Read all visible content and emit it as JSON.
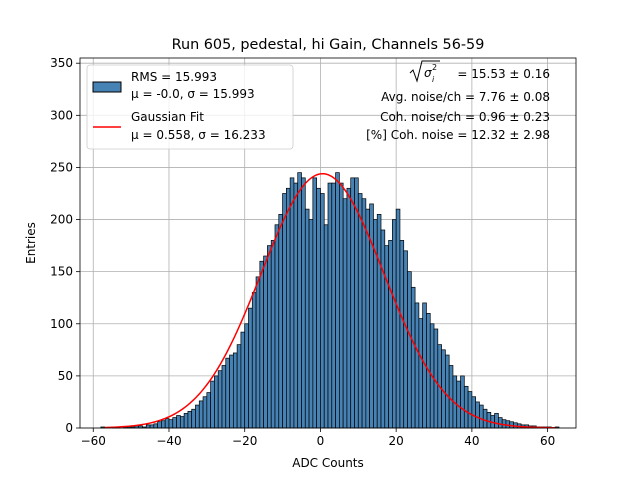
{
  "chart_data": {
    "type": "bar",
    "title": "Run 605, pedestal, hi Gain, Channels 56-59",
    "xlabel": "ADC Counts",
    "ylabel": "Entries",
    "xlim": [
      -63.5,
      67.5
    ],
    "ylim": [
      0,
      355
    ],
    "xticks": [
      -60,
      -40,
      -20,
      0,
      20,
      40,
      60
    ],
    "xtick_labels": [
      "−60",
      "−40",
      "−20",
      "0",
      "20",
      "40",
      "60"
    ],
    "yticks": [
      0,
      50,
      100,
      150,
      200,
      250,
      300,
      350
    ],
    "grid": true,
    "legend_position": "top-left",
    "bin_width": 1,
    "bin_start": -58,
    "bar_color": "#4682b4",
    "fit_color": "#ff0000",
    "counts": [
      1,
      0,
      0,
      1,
      1,
      0,
      1,
      1,
      1,
      2,
      2,
      1,
      3,
      3,
      4,
      6,
      7,
      9,
      8,
      10,
      12,
      11,
      14,
      16,
      18,
      22,
      26,
      30,
      34,
      45,
      50,
      55,
      60,
      67,
      70,
      72,
      80,
      92,
      100,
      115,
      130,
      145,
      160,
      165,
      175,
      180,
      195,
      205,
      225,
      230,
      240,
      235,
      245,
      240,
      210,
      200,
      240,
      230,
      225,
      195,
      235,
      235,
      245,
      235,
      220,
      230,
      240,
      240,
      225,
      220,
      210,
      215,
      200,
      205,
      190,
      175,
      180,
      200,
      210,
      180,
      170,
      150,
      135,
      120,
      105,
      120,
      110,
      100,
      95,
      80,
      75,
      70,
      60,
      50,
      45,
      50,
      40,
      35,
      30,
      25,
      22,
      18,
      15,
      12,
      14,
      10,
      8,
      7,
      6,
      5,
      4,
      3,
      3,
      2,
      2,
      1,
      1,
      1,
      1,
      0,
      1
    ],
    "fit": {
      "mu": 0.558,
      "sigma": 16.233,
      "amplitude": 244,
      "range": [
        -57,
        62
      ]
    },
    "legend": [
      {
        "kind": "patch",
        "line1": "RMS = 15.993",
        "line2": "μ = -0.0, σ = 15.993"
      },
      {
        "kind": "line",
        "line1": "Gaussian Fit",
        "line2": "μ = 0.558, σ = 16.233"
      }
    ],
    "annotations": {
      "sigma_label_value": " = 15.53 ± 0.16",
      "avg_noise": "Avg. noise/ch = 7.76 ± 0.08",
      "coh_noise": "Coh. noise/ch = 0.96 ± 0.23",
      "coh_noise_pct": "[%] Coh. noise = 12.32 ± 2.98"
    }
  }
}
